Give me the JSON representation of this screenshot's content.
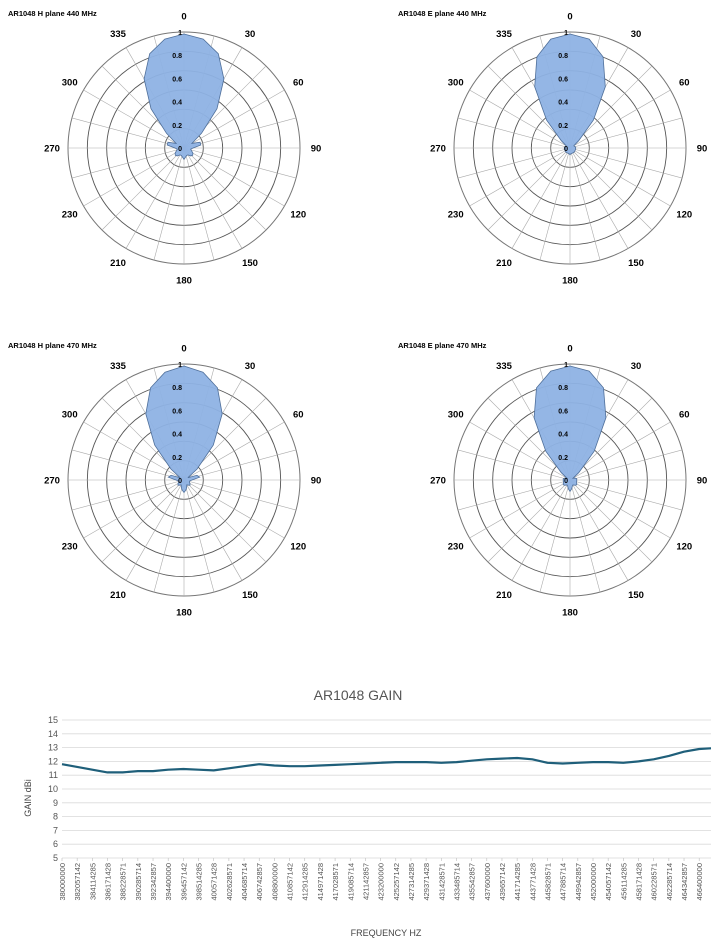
{
  "chart_data": [
    {
      "type": "polar",
      "title": "AR1048  H plane 440 MHz",
      "angle_labels": [
        "0",
        "30",
        "60",
        "90",
        "120",
        "150",
        "180",
        "210",
        "230",
        "270",
        "300",
        "335"
      ],
      "radial_labels": [
        "0",
        "0.2",
        "0.4",
        "0.6",
        "0.8",
        "1"
      ],
      "rlim": [
        0,
        1
      ],
      "angles": [
        0,
        10,
        20,
        30,
        40,
        50,
        60,
        70,
        80,
        90,
        100,
        110,
        120,
        130,
        140,
        150,
        160,
        170,
        180,
        190,
        200,
        210,
        220,
        230,
        240,
        250,
        260,
        270,
        280,
        290,
        300,
        310,
        320,
        330,
        340,
        350
      ],
      "values": [
        1.0,
        0.97,
        0.88,
        0.7,
        0.45,
        0.2,
        0.08,
        0.15,
        0.15,
        0.08,
        0.06,
        0.07,
        0.09,
        0.1,
        0.09,
        0.07,
        0.07,
        0.08,
        0.1,
        0.08,
        0.07,
        0.07,
        0.09,
        0.1,
        0.09,
        0.07,
        0.06,
        0.08,
        0.15,
        0.15,
        0.08,
        0.2,
        0.45,
        0.7,
        0.88,
        0.97
      ]
    },
    {
      "type": "polar",
      "title": "AR1048  E plane 440 MHz",
      "angle_labels": [
        "0",
        "30",
        "60",
        "90",
        "120",
        "150",
        "180",
        "210",
        "230",
        "270",
        "300",
        "335"
      ],
      "radial_labels": [
        "0",
        "0.2",
        "0.4",
        "0.6",
        "0.8",
        "1"
      ],
      "rlim": [
        0,
        1
      ],
      "angles": [
        0,
        10,
        20,
        30,
        40,
        50,
        60,
        70,
        80,
        90,
        100,
        110,
        120,
        130,
        140,
        150,
        160,
        170,
        180,
        190,
        200,
        210,
        220,
        230,
        240,
        250,
        260,
        270,
        280,
        290,
        300,
        310,
        320,
        330,
        340,
        350
      ],
      "values": [
        1.0,
        0.97,
        0.85,
        0.62,
        0.32,
        0.1,
        0.04,
        0.04,
        0.05,
        0.05,
        0.05,
        0.05,
        0.05,
        0.05,
        0.05,
        0.05,
        0.05,
        0.05,
        0.06,
        0.05,
        0.05,
        0.05,
        0.05,
        0.05,
        0.05,
        0.05,
        0.05,
        0.05,
        0.05,
        0.04,
        0.04,
        0.1,
        0.32,
        0.62,
        0.85,
        0.97
      ]
    },
    {
      "type": "polar",
      "title": "AR1048  H plane 470 MHz",
      "angle_labels": [
        "0",
        "30",
        "60",
        "90",
        "120",
        "150",
        "180",
        "210",
        "230",
        "270",
        "300",
        "335"
      ],
      "radial_labels": [
        "0",
        "0.2",
        "0.4",
        "0.6",
        "0.8",
        "1"
      ],
      "rlim": [
        0,
        1
      ],
      "angles": [
        0,
        10,
        20,
        30,
        40,
        50,
        60,
        70,
        80,
        90,
        100,
        110,
        120,
        130,
        140,
        150,
        160,
        170,
        180,
        190,
        200,
        210,
        220,
        230,
        240,
        250,
        260,
        270,
        280,
        290,
        300,
        310,
        320,
        330,
        340,
        350
      ],
      "values": [
        1.0,
        0.96,
        0.86,
        0.67,
        0.4,
        0.15,
        0.04,
        0.12,
        0.14,
        0.07,
        0.05,
        0.05,
        0.06,
        0.07,
        0.06,
        0.05,
        0.07,
        0.09,
        0.11,
        0.09,
        0.07,
        0.05,
        0.06,
        0.07,
        0.06,
        0.05,
        0.05,
        0.07,
        0.14,
        0.12,
        0.04,
        0.15,
        0.4,
        0.67,
        0.86,
        0.96
      ]
    },
    {
      "type": "polar",
      "title": "AR1048  E plane 470 MHz",
      "angle_labels": [
        "0",
        "30",
        "60",
        "90",
        "120",
        "150",
        "180",
        "210",
        "230",
        "270",
        "300",
        "335"
      ],
      "radial_labels": [
        "0",
        "0.2",
        "0.4",
        "0.6",
        "0.8",
        "1"
      ],
      "rlim": [
        0,
        1
      ],
      "angles": [
        0,
        10,
        20,
        30,
        40,
        50,
        60,
        70,
        80,
        90,
        100,
        110,
        120,
        130,
        140,
        150,
        160,
        170,
        180,
        190,
        200,
        210,
        220,
        230,
        240,
        250,
        260,
        270,
        280,
        290,
        300,
        310,
        320,
        330,
        340,
        350
      ],
      "values": [
        1.0,
        0.97,
        0.86,
        0.63,
        0.33,
        0.1,
        0.03,
        0.05,
        0.06,
        0.06,
        0.06,
        0.06,
        0.07,
        0.07,
        0.06,
        0.05,
        0.06,
        0.08,
        0.1,
        0.08,
        0.06,
        0.05,
        0.06,
        0.07,
        0.07,
        0.06,
        0.06,
        0.06,
        0.06,
        0.05,
        0.03,
        0.1,
        0.33,
        0.63,
        0.86,
        0.97
      ]
    },
    {
      "type": "line",
      "title": "AR1048  GAIN",
      "xlabel": "FREQUENCY  HZ",
      "ylabel": "GAIN  dBi",
      "ylim": [
        5,
        15
      ],
      "y_ticks": [
        "5",
        "6",
        "7",
        "8",
        "9",
        "10",
        "11",
        "12",
        "13",
        "14",
        "15"
      ],
      "grid": true,
      "color": "#1f5f7a",
      "x_tick_labels": [
        "380000000",
        "382057142",
        "384114285",
        "386171428",
        "388228571",
        "390285714",
        "392342857",
        "394400000",
        "396457142",
        "398514285",
        "400571428",
        "402628571",
        "404685714",
        "406742857",
        "408800000",
        "410857142",
        "412914285",
        "414971428",
        "417028571",
        "419085714",
        "421142857",
        "423200000",
        "425257142",
        "427314285",
        "429371428",
        "431428571",
        "433485714",
        "435542857",
        "437600000",
        "439657142",
        "441714285",
        "443771428",
        "445828571",
        "447885714",
        "449942857",
        "452000000",
        "454057142",
        "456114285",
        "458171428",
        "460228571",
        "462285714",
        "464342857",
        "466400000"
      ],
      "x": [
        380000000,
        382057142,
        384114285,
        386171428,
        388228571,
        390285714,
        392342857,
        394400000,
        396457142,
        398514285,
        400571428,
        402628571,
        404685714,
        406742857,
        408800000,
        410857142,
        412914285,
        414971428,
        417028571,
        419085714,
        421142857,
        423200000,
        425257142,
        427314285,
        429371428,
        431428571,
        433485714,
        435542857,
        437600000,
        439657142,
        441714285,
        443771428,
        445828571,
        447885714,
        449942857,
        452000000,
        454057142,
        456114285,
        458171428,
        460228571,
        462285714,
        464342857,
        466400000,
        468000000
      ],
      "values": [
        11.8,
        11.6,
        11.4,
        11.2,
        11.2,
        11.3,
        11.3,
        11.4,
        11.45,
        11.4,
        11.35,
        11.5,
        11.65,
        11.8,
        11.7,
        11.65,
        11.65,
        11.7,
        11.75,
        11.8,
        11.85,
        11.9,
        11.95,
        11.95,
        11.95,
        11.9,
        11.95,
        12.05,
        12.15,
        12.2,
        12.25,
        12.15,
        11.9,
        11.85,
        11.9,
        11.95,
        11.95,
        11.9,
        12.0,
        12.15,
        12.4,
        12.7,
        12.9,
        12.95
      ]
    }
  ]
}
